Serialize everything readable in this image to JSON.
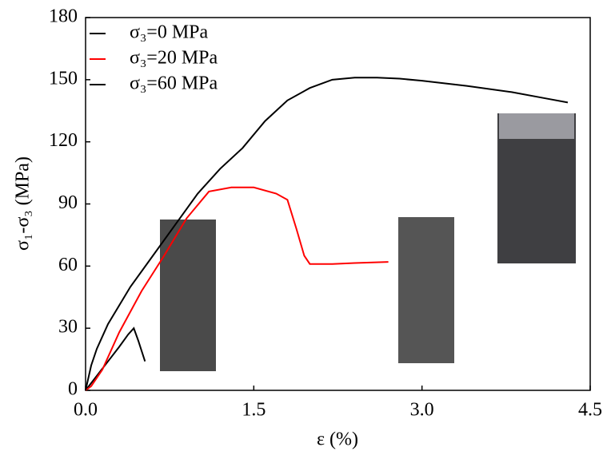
{
  "chart_data": {
    "type": "line",
    "xlabel": "ε (%)",
    "ylabel": "σ₁-σ₃ (MPa)",
    "xlim": [
      0,
      4.5
    ],
    "xticks": [
      {
        "value": 0,
        "label": "0.0"
      },
      1.5,
      {
        "value": 3,
        "label": "3.0"
      },
      4.5
    ],
    "ylim": [
      0,
      180
    ],
    "yticks": [
      0,
      30,
      60,
      90,
      120,
      150,
      180
    ],
    "legend": "upper left",
    "series": [
      {
        "name": "σ₃=0 MPa",
        "color": "#000000",
        "x": [
          0,
          0.1,
          0.2,
          0.3,
          0.38,
          0.43,
          0.47,
          0.53
        ],
        "values": [
          0,
          7,
          14,
          21,
          27,
          30,
          24,
          14
        ]
      },
      {
        "name": "σ₃=20 MPa",
        "color": "#ff0000",
        "x": [
          0,
          0.05,
          0.15,
          0.3,
          0.5,
          0.7,
          0.9,
          1.1,
          1.3,
          1.5,
          1.7,
          1.8,
          1.88,
          1.95,
          2.0,
          2.2,
          2.4,
          2.7
        ],
        "values": [
          0,
          2,
          10,
          28,
          48,
          65,
          83,
          96,
          98,
          98,
          95,
          92,
          78,
          65,
          61,
          61,
          61.5,
          62
        ]
      },
      {
        "name": "σ₃=60 MPa",
        "color": "#000000",
        "x": [
          0,
          0.05,
          0.1,
          0.2,
          0.4,
          0.6,
          0.8,
          1.0,
          1.2,
          1.4,
          1.6,
          1.8,
          2.0,
          2.2,
          2.4,
          2.6,
          2.8,
          3.0,
          3.4,
          3.8,
          4.1,
          4.3
        ],
        "values": [
          0,
          12,
          20,
          32,
          50,
          65,
          80,
          95,
          107,
          117,
          130,
          140,
          146,
          150,
          151,
          151,
          150.5,
          149.5,
          147,
          144,
          141,
          139
        ]
      }
    ]
  }
}
